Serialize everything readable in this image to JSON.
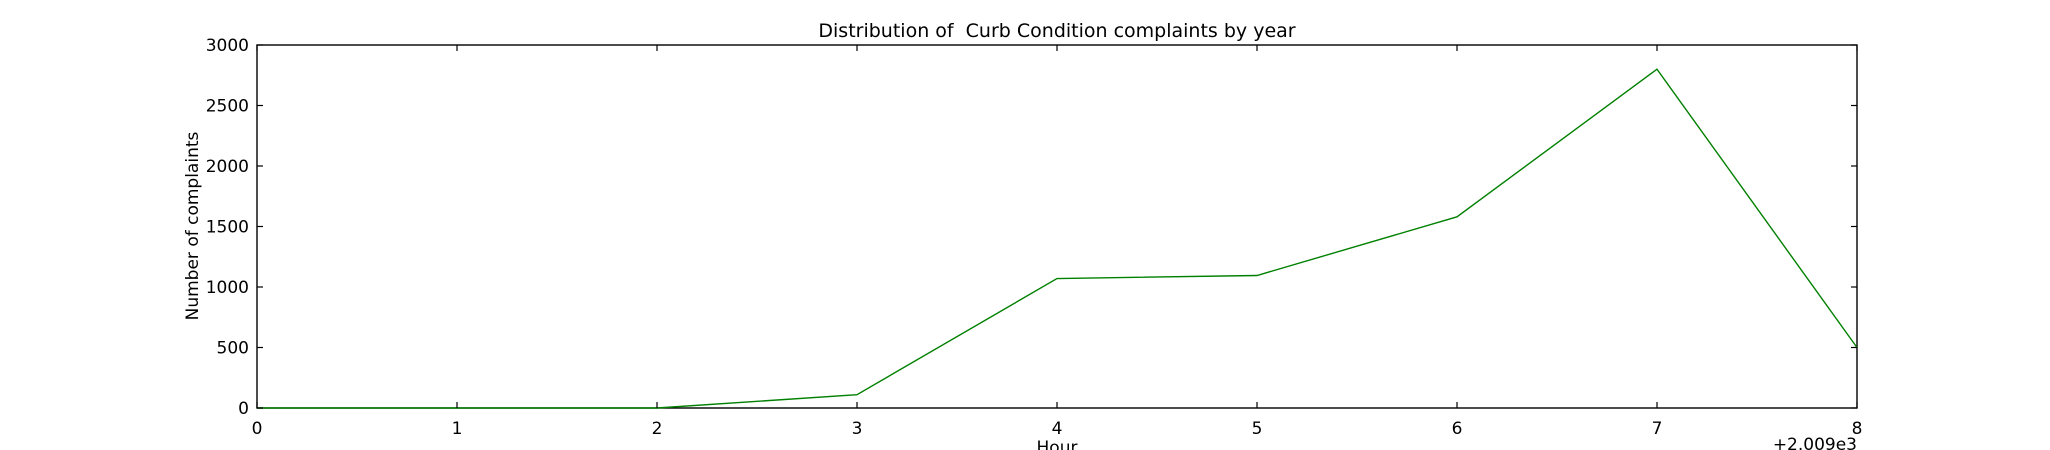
{
  "chart_data": {
    "type": "line",
    "title": "Distribution of  Curb Condition complaints by year",
    "xlabel": "Hour",
    "ylabel": "Number of complaints",
    "x_offset_label": "+2.009e3",
    "x": [
      0,
      1,
      2,
      3,
      4,
      5,
      6,
      7,
      8
    ],
    "series": [
      {
        "values": [
          0,
          0,
          0,
          110,
          1070,
          1095,
          1580,
          2800,
          500
        ],
        "color": "#008000"
      }
    ],
    "xlim": [
      0,
      8
    ],
    "ylim": [
      0,
      3000
    ],
    "xticks": [
      "0",
      "1",
      "2",
      "3",
      "4",
      "5",
      "6",
      "7",
      "8"
    ],
    "yticks": [
      "0",
      "500",
      "1000",
      "1500",
      "2000",
      "2500",
      "3000"
    ],
    "grid": false,
    "legend": "none"
  }
}
